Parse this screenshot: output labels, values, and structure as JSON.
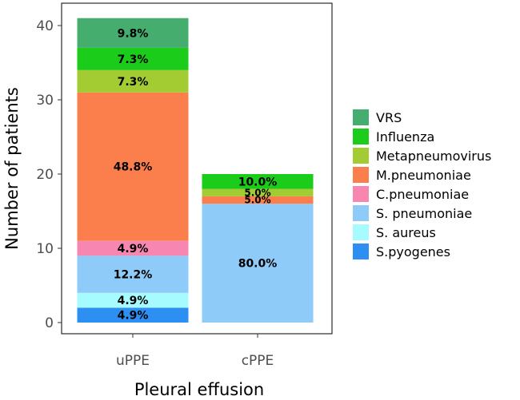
{
  "chart_data": {
    "type": "bar",
    "stacked": true,
    "categories": [
      "uPPE",
      "cPPE"
    ],
    "xlabel": "Pleural effusion",
    "ylabel": "Number of patients",
    "ylim": [
      0,
      42
    ],
    "yticks": [
      0,
      10,
      20,
      30,
      40
    ],
    "grid": false,
    "legend_position": "right",
    "series": [
      {
        "name": "S.pyogenes",
        "color": "#2e8ff2",
        "values": [
          2,
          0
        ],
        "labels": [
          "4.9%",
          ""
        ]
      },
      {
        "name": "S. aureus",
        "color": "#a6fbff",
        "values": [
          2,
          0
        ],
        "labels": [
          "4.9%",
          ""
        ]
      },
      {
        "name": "S. pneumoniae",
        "color": "#8ecbf8",
        "values": [
          5,
          16
        ],
        "labels": [
          "12.2%",
          "80.0%"
        ]
      },
      {
        "name": "C.pneumoniae",
        "color": "#f787b0",
        "values": [
          2,
          0
        ],
        "labels": [
          "4.9%",
          ""
        ]
      },
      {
        "name": "M.pneumoniae",
        "color": "#fb7f4c",
        "values": [
          20,
          1
        ],
        "labels": [
          "48.8%",
          "5.0%"
        ]
      },
      {
        "name": "Metapneumovirus",
        "color": "#a3cc33",
        "values": [
          3,
          1
        ],
        "labels": [
          "7.3%",
          "5.0%"
        ]
      },
      {
        "name": "Influenza",
        "color": "#1ccc1a",
        "values": [
          3,
          2
        ],
        "labels": [
          "7.3%",
          "10.0%"
        ]
      },
      {
        "name": "VRS",
        "color": "#45ad6d",
        "values": [
          4,
          0
        ],
        "labels": [
          "9.8%",
          ""
        ]
      }
    ],
    "legend_order": [
      "VRS",
      "Influenza",
      "Metapneumovirus",
      "M.pneumoniae",
      "C.pneumoniae",
      "S. pneumoniae",
      "S. aureus",
      "S.pyogenes"
    ]
  }
}
